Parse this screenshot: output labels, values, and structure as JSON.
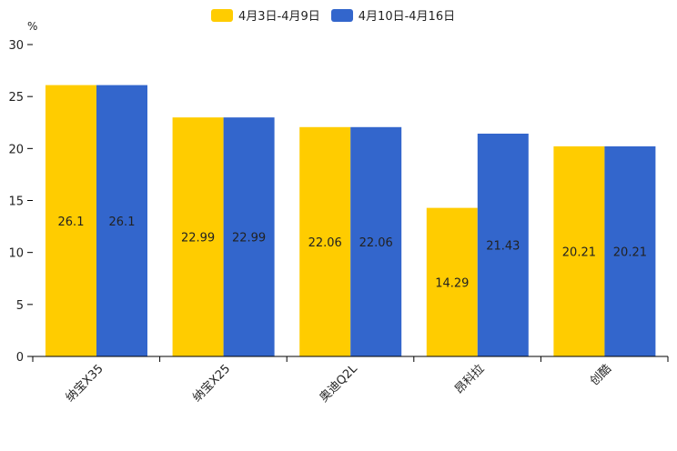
{
  "chart_data": {
    "type": "bar",
    "unit_label": "%",
    "categories": [
      "纳宝X35",
      "纳宝X25",
      "奥迪Q2L",
      "昂科拉",
      "创酷"
    ],
    "series": [
      {
        "name": "4月3日-4月9日",
        "color": "#ffcc00",
        "values": [
          26.1,
          22.99,
          22.06,
          14.29,
          20.21
        ],
        "labels": [
          "26.1",
          "22.99",
          "22.06",
          "14.29",
          "20.21"
        ]
      },
      {
        "name": "4月10日-4月16日",
        "color": "#3366cc",
        "values": [
          26.1,
          22.99,
          22.06,
          21.43,
          20.21
        ],
        "labels": [
          "26.1",
          "22.99",
          "22.06",
          "21.43",
          "20.21"
        ]
      }
    ],
    "ylim": [
      0,
      30
    ],
    "yticks": [
      0,
      5,
      10,
      15,
      20,
      25,
      30
    ],
    "legend_position": "top-center"
  }
}
